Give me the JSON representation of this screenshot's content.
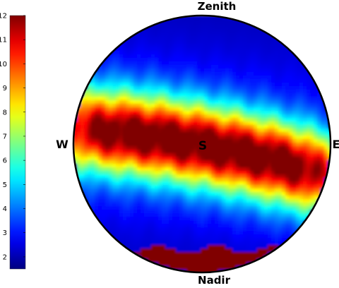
{
  "chart_data": {
    "type": "heatmap",
    "projection": "polar-disk",
    "colormap": "jet",
    "colorbar": {
      "min": 1.5,
      "max": 12,
      "ticks": [
        2,
        3,
        4,
        5,
        6,
        7,
        8,
        9,
        10,
        11,
        12
      ],
      "placement": "left"
    },
    "direction_labels": {
      "top": "Zenith",
      "bottom": "Nadir",
      "left": "W",
      "right": "E",
      "center": "S"
    },
    "background_level": 2.3,
    "band": {
      "peak": 11.7,
      "y_at_left": 0.12,
      "y_at_right": -0.25,
      "y_center": -0.06,
      "curvature": 0.14,
      "half_width": 0.22,
      "fade_at_edges": 0.25
    },
    "nadir_cap": {
      "level": 12,
      "starts_at": -0.82
    }
  }
}
